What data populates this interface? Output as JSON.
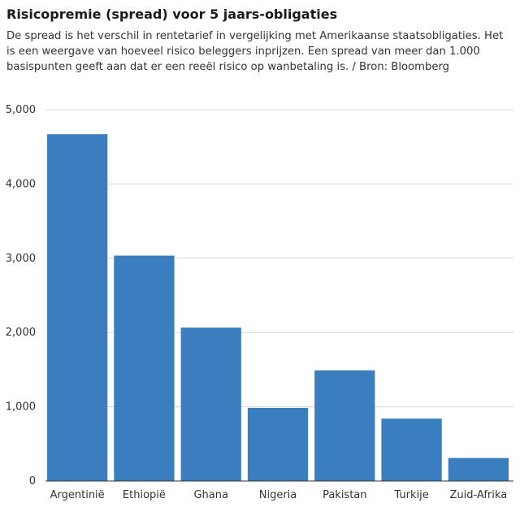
{
  "title": "Risicopremie (spread) voor 5 jaars-obligaties",
  "subtitle": "De spread is het verschil in rentetarief in vergelijking met Amerikaanse staatsobligaties. Het is een weergave van hoeveel risico beleggers inprijzen. Een spread van meer dan 1.000 basispunten geeft aan dat er een reeël risico op wanbetaling is. / Bron: Bloomberg",
  "colors": {
    "bar": "#3a7ebf",
    "grid": "#d9d9d9",
    "axis": "#333333"
  },
  "chart_data": {
    "type": "bar",
    "categories": [
      "Argentinië",
      "Ethiopië",
      "Ghana",
      "Nigeria",
      "Pakistan",
      "Turkije",
      "Zuid-Afrika"
    ],
    "values": [
      4670,
      3035,
      2065,
      985,
      1490,
      840,
      310
    ],
    "ylim": [
      0,
      5000
    ],
    "yticks": [
      0,
      1000,
      2000,
      3000,
      4000,
      5000
    ],
    "ytick_labels": [
      "0",
      "1,000",
      "2,000",
      "3,000",
      "4,000",
      "5,000"
    ],
    "grid": true,
    "legend": "none",
    "xlabel": "",
    "ylabel": ""
  }
}
